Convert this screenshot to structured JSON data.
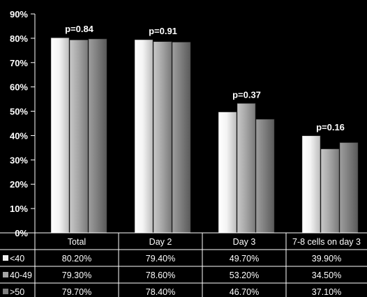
{
  "chart_data": {
    "type": "bar",
    "categories": [
      "Total",
      "Day 2",
      "Day 3",
      "7-8 cells on day 3"
    ],
    "series": [
      {
        "name": "<40",
        "values": [
          80.2,
          79.4,
          49.7,
          39.9
        ],
        "labels": [
          "80.20%",
          "79.40%",
          "49.70%",
          "39.90%"
        ]
      },
      {
        "name": "40-49",
        "values": [
          79.3,
          78.6,
          53.2,
          34.5
        ],
        "labels": [
          "79.30%",
          "78.60%",
          "53.20%",
          "34.50%"
        ]
      },
      {
        "name": ">50",
        "values": [
          79.7,
          78.4,
          46.7,
          37.1
        ],
        "labels": [
          "79.70%",
          "78.40%",
          "46.70%",
          "37.10%"
        ]
      }
    ],
    "annotations": [
      "p=0.84",
      "p=0.91",
      "p=0.37",
      "p=0.16"
    ],
    "yticks": [
      "0%",
      "10%",
      "20%",
      "30%",
      "40%",
      "50%",
      "60%",
      "70%",
      "80%",
      "90%"
    ],
    "ylim": [
      0,
      90
    ],
    "grid": false,
    "legend": "data table below chart",
    "colors": {
      "background": "#000000",
      "series": [
        "#f2f2f2",
        "#a6a6a6",
        "#7f7f7f"
      ],
      "text": "#ffffff",
      "lines": "#ffffff"
    }
  }
}
